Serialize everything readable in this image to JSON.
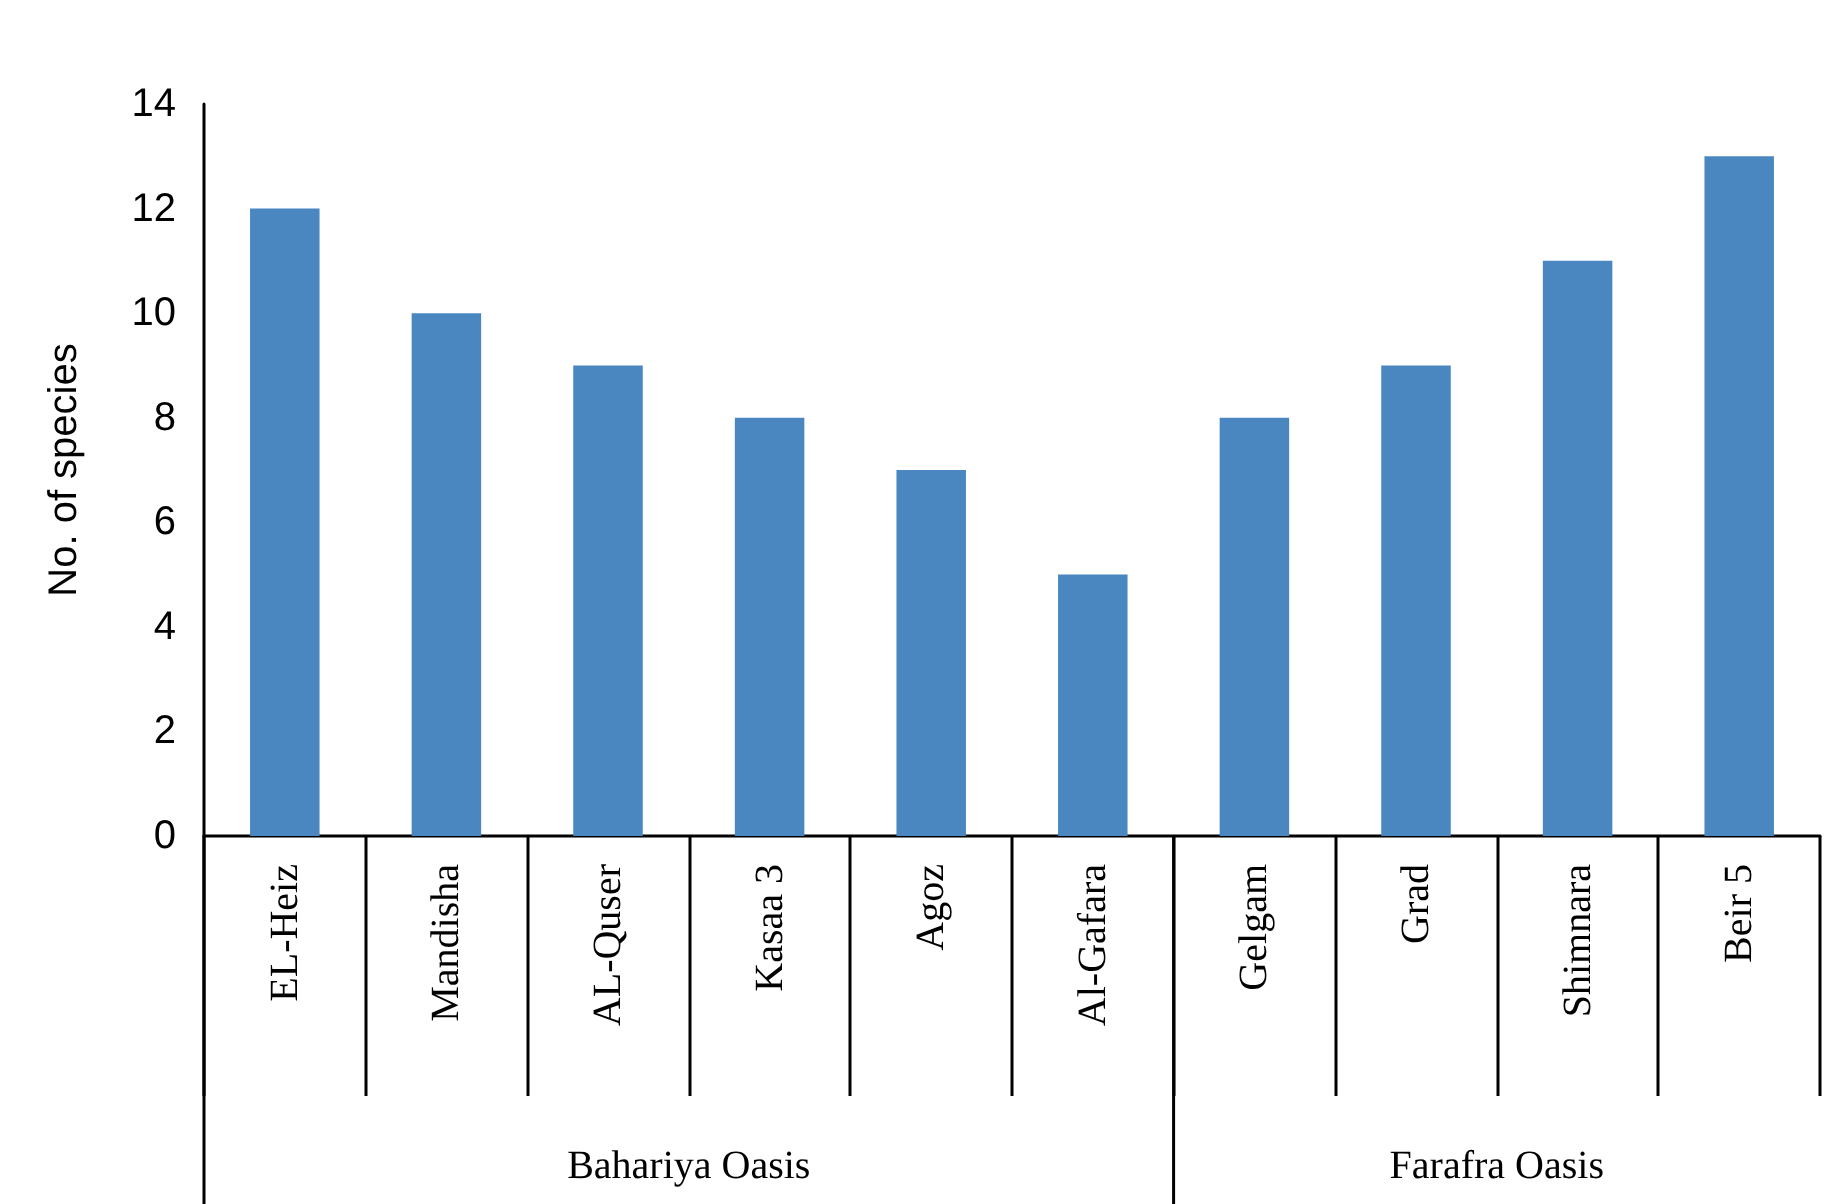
{
  "chart_data": {
    "type": "bar",
    "ylabel": "No. of species",
    "categories": [
      "EL-Heiz",
      "Mandisha",
      "AL-Quser",
      "Kasaa 3",
      "Agoz",
      "Al-Gafara",
      "Gelgam",
      "Grad",
      "Shimnara",
      "Beir 5"
    ],
    "values": [
      12,
      10,
      9,
      8,
      7,
      5,
      8,
      9,
      11,
      13
    ],
    "color": "#4a86c0",
    "ylim": [
      0,
      14
    ],
    "yticks": [
      0,
      2,
      4,
      6,
      8,
      10,
      12,
      14
    ],
    "grid": false,
    "annotations": [
      "Bahariya Oasis",
      "Farafra Oasis"
    ]
  }
}
